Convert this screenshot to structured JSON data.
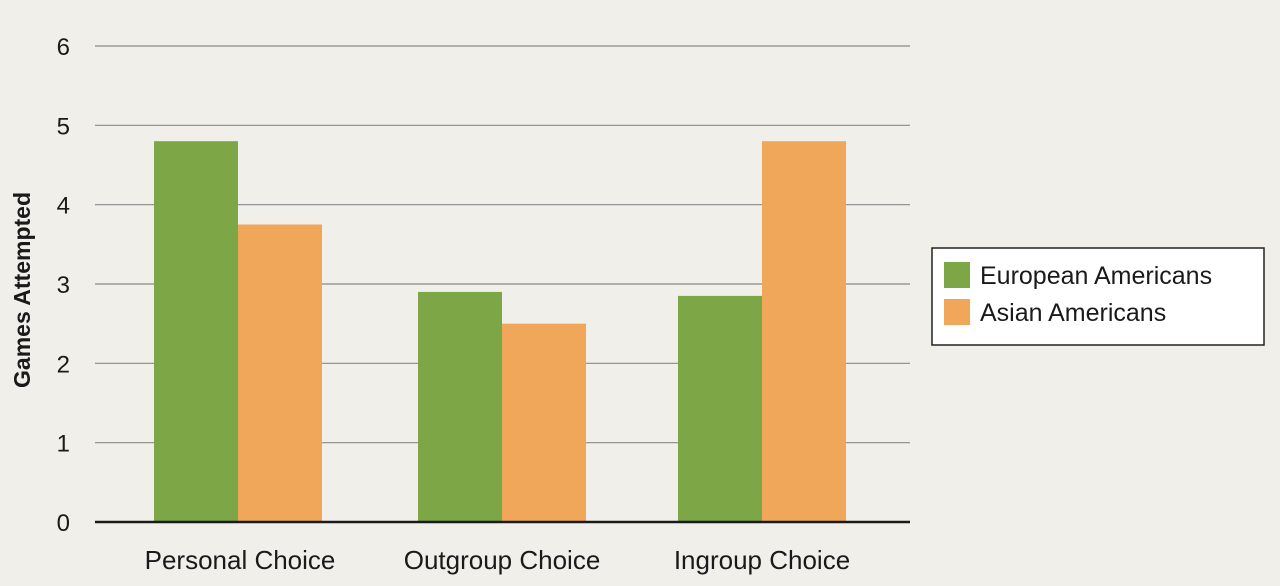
{
  "chart_data": {
    "type": "bar",
    "categories": [
      "Personal Choice",
      "Outgroup Choice",
      "Ingroup Choice"
    ],
    "series": [
      {
        "name": "European Americans",
        "values": [
          4.8,
          2.9,
          2.85
        ],
        "color": "#7da647"
      },
      {
        "name": "Asian Americans",
        "values": [
          3.75,
          2.5,
          4.8
        ],
        "color": "#f0a75a"
      }
    ],
    "title": "",
    "xlabel": "",
    "ylabel": "Games Attempted",
    "ylim": [
      0,
      6
    ],
    "yticks": [
      "0",
      "1",
      "2",
      "3",
      "4",
      "5",
      "6"
    ],
    "grid": true,
    "legend_position": "right"
  }
}
